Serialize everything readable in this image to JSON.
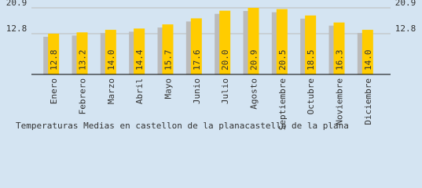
{
  "chart_data": {
    "type": "bar",
    "title": "Temperaturas Medias en castellon de la planacastello de la plana",
    "categories": [
      "Enero",
      "Febrero",
      "Marzo",
      "Abril",
      "Mayo",
      "Junio",
      "Julio",
      "Agosto",
      "Septiembre",
      "Octubre",
      "Noviembre",
      "Diciembre"
    ],
    "values": [
      12.8,
      13.2,
      14.0,
      14.4,
      15.7,
      17.6,
      20.0,
      20.9,
      20.5,
      18.5,
      16.3,
      14.0
    ],
    "value_labels": [
      "12.8",
      "13.2",
      "14.0",
      "14.4",
      "15.7",
      "17.6",
      "20.0",
      "20.9",
      "20.5",
      "18.5",
      "16.3",
      "14.0"
    ],
    "color": "#ffcc00",
    "shadow_color": "#bbbbbb",
    "ylim": [
      0,
      20.9
    ],
    "yticks": [
      12.8,
      20.9
    ],
    "grid": true
  }
}
